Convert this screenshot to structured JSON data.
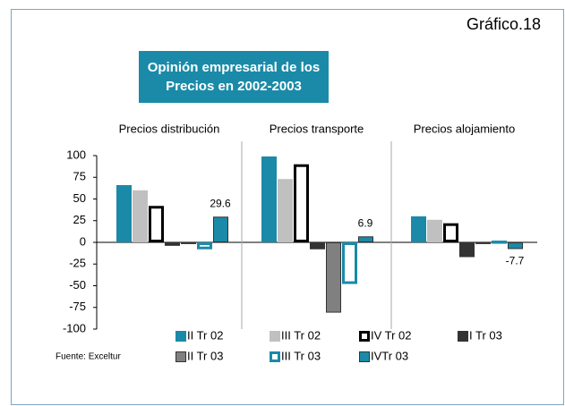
{
  "chart_data": {
    "type": "bar",
    "figure_label": "Gráfico.18",
    "title": "Opinión empresarial de los Precios en 2002-2003",
    "source": "Fuente: Exceltur",
    "categories": [
      "Precios distribución",
      "Precios transporte",
      "Precios alojamiento"
    ],
    "series": [
      {
        "name": "II Tr 02",
        "color": "#1a8aa8",
        "edgecolor": "#1a8aa8",
        "values": [
          66,
          99,
          30
        ]
      },
      {
        "name": "III Tr 02",
        "color": "#c0c0c0",
        "edgecolor": "#c0c0c0",
        "values": [
          60,
          73,
          26
        ]
      },
      {
        "name": "IV Tr 02",
        "color": "#ffffff",
        "edgecolor": "#000000",
        "values": [
          42,
          90,
          22
        ]
      },
      {
        "name": "I Tr  03",
        "color": "#333333",
        "edgecolor": "#333333",
        "values": [
          -4,
          -8,
          -17
        ]
      },
      {
        "name": "II Tr 03",
        "color": "#808080",
        "edgecolor": "#333333",
        "values": [
          -2,
          -81,
          -2
        ]
      },
      {
        "name": "III Tr 03",
        "color": "#ffffff",
        "edgecolor": "#1a8aa8",
        "values": [
          -8,
          -48,
          2
        ]
      },
      {
        "name": "IVTr  03",
        "color": "#1a8aa8",
        "edgecolor": "#333333",
        "values": [
          29.6,
          6.9,
          -7.7
        ],
        "show_labels": true
      }
    ],
    "ylim": [
      -100,
      100
    ],
    "yticks": [
      -100,
      -75,
      -50,
      -25,
      0,
      25,
      50,
      75,
      100
    ]
  }
}
